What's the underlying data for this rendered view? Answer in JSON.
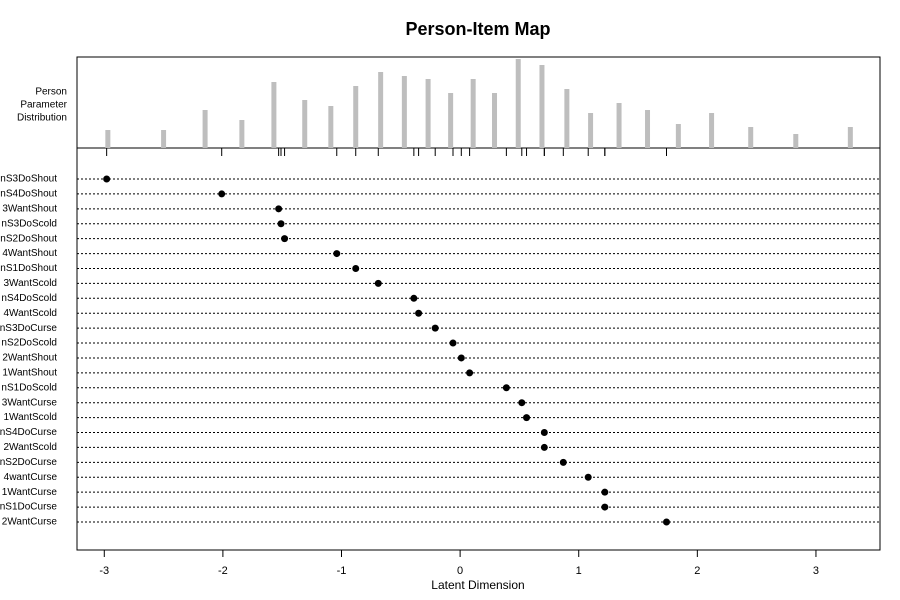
{
  "chart_data": {
    "type": "person-item-map",
    "title": "Person-Item Map",
    "ylabel_lines": [
      "Person",
      "Parameter",
      "Distribution"
    ],
    "xlabel": "Latent Dimension",
    "xlim": [
      -3.23,
      3.54
    ],
    "xticks": [
      -3,
      -2,
      -1,
      0,
      1,
      2,
      3
    ],
    "person_distribution": {
      "x": [
        -2.97,
        -2.5,
        -2.15,
        -1.84,
        -1.57,
        -1.31,
        -1.09,
        -0.88,
        -0.67,
        -0.47,
        -0.27,
        -0.08,
        0.11,
        0.29,
        0.49,
        0.69,
        0.9,
        1.1,
        1.34,
        1.58,
        1.84,
        2.12,
        2.45,
        2.83,
        3.29
      ],
      "values": [
        18,
        18,
        38,
        28,
        66,
        48,
        42,
        62,
        76,
        72,
        69,
        55,
        69,
        55,
        89,
        83,
        59,
        35,
        45,
        38,
        24,
        35,
        21,
        14,
        21
      ],
      "ylim": [
        0,
        91
      ],
      "color": "#bebebe"
    },
    "items": {
      "categories": [
        "nS3DoShout",
        "nS4DoShout",
        "3WantShout",
        "nS3DoScold",
        "nS2DoShout",
        "4WantShout",
        "nS1DoShout",
        "3WantScold",
        "nS4DoScold",
        "4WantScold",
        "nS3DoCurse",
        "nS2DoScold",
        "2WantShout",
        "1WantShout",
        "nS1DoScold",
        "3WantCurse",
        "1WantScold",
        "nS4DoCurse",
        "2WantScold",
        "nS2DoCurse",
        "4wantCurse",
        "1WantCurse",
        "nS1DoCurse",
        "2WantCurse"
      ],
      "values": [
        -2.98,
        -2.01,
        -1.53,
        -1.51,
        -1.48,
        -1.04,
        -0.88,
        -0.69,
        -0.39,
        -0.35,
        -0.21,
        -0.06,
        0.01,
        0.08,
        0.39,
        0.52,
        0.56,
        0.71,
        0.71,
        0.87,
        1.08,
        1.22,
        1.22,
        1.74
      ],
      "color": "#000000"
    }
  }
}
